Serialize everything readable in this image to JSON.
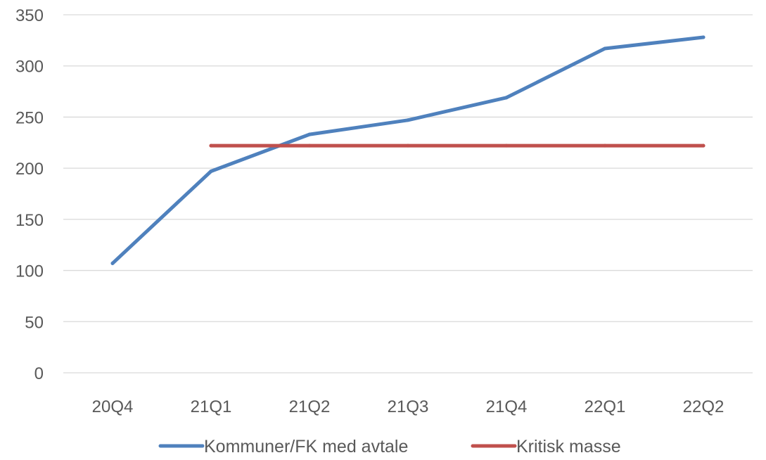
{
  "chart_data": {
    "type": "line",
    "title": "",
    "xlabel": "",
    "ylabel": "",
    "categories": [
      "20Q4",
      "21Q1",
      "21Q2",
      "21Q3",
      "21Q4",
      "22Q1",
      "22Q2"
    ],
    "y_ticks": [
      "0",
      "50",
      "100",
      "150",
      "200",
      "250",
      "300",
      "350"
    ],
    "ylim": [
      0,
      350
    ],
    "grid": "horizontal",
    "legend_position": "bottom",
    "series": [
      {
        "name": "Kommuner/FK med avtale",
        "color": "#4F81BD",
        "x": [
          "20Q4",
          "21Q1",
          "21Q2",
          "21Q3",
          "21Q4",
          "22Q1",
          "22Q2"
        ],
        "values": [
          107,
          197,
          233,
          247,
          269,
          317,
          328
        ]
      },
      {
        "name": "Kritisk masse",
        "color": "#C0504D",
        "x": [
          "21Q1",
          "21Q2",
          "21Q3",
          "21Q4",
          "22Q1",
          "22Q2"
        ],
        "values": [
          222,
          222,
          222,
          222,
          222,
          222
        ]
      }
    ]
  }
}
